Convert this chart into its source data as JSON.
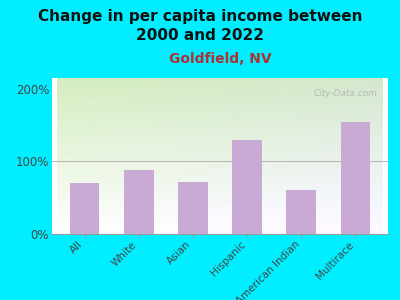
{
  "title": "Change in per capita income between\n2000 and 2022",
  "subtitle": "Goldfield, NV",
  "categories": [
    "All",
    "White",
    "Asian",
    "Hispanic",
    "American Indian",
    "Multirace"
  ],
  "values": [
    70,
    88,
    72,
    130,
    60,
    155
  ],
  "bar_color": "#c8aad4",
  "background_outer": "#00eeff",
  "title_fontsize": 11,
  "subtitle_fontsize": 10,
  "subtitle_color": "#aa3333",
  "ytick_labels": [
    "0%",
    "100%",
    "200%"
  ],
  "ytick_values": [
    0,
    100,
    200
  ],
  "ylim": [
    0,
    215
  ],
  "watermark": "City-Data.com"
}
